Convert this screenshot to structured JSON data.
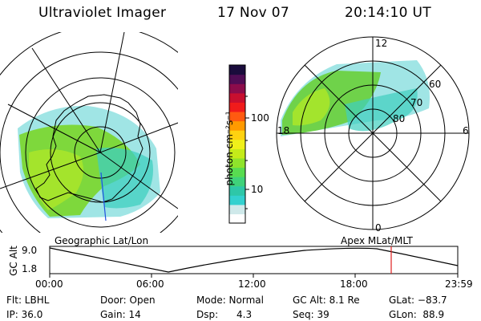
{
  "header": {
    "instrument": "Ultraviolet Imager",
    "date": "17 Nov 07",
    "time": "20:14:10 UT"
  },
  "colorbar": {
    "unit_label": "photon cm⁻²s⁻¹",
    "tick_labels": [
      "100",
      "10"
    ],
    "colors": [
      "#ffffff",
      "#cfe9ea",
      "#33d1cf",
      "#2ec7a8",
      "#3fd27a",
      "#58dc50",
      "#8fe32b",
      "#c4eb19",
      "#f0f01a",
      "#ffd210",
      "#ff9a00",
      "#ff5a10",
      "#f01b1b",
      "#c80f2f",
      "#8c0c4b",
      "#500d55",
      "#1a0c3c"
    ]
  },
  "left_map": {
    "label": "Geographic Lat/Lon"
  },
  "right_map": {
    "label": "Apex MLat/MLT",
    "lat_labels": [
      "60",
      "70",
      "80"
    ],
    "mlt_labels": [
      "12",
      "18",
      "6",
      "0"
    ]
  },
  "timeline": {
    "axis_title": "GC Alt",
    "y_ticks": [
      "9.0",
      "1.8"
    ],
    "x_ticks": [
      "00:00",
      "06:00",
      "12:00",
      "18:00",
      "23:59"
    ],
    "current_marker_color": "#e02020"
  },
  "info": {
    "flt": "Flt: LBHL",
    "ip": "IP: 36.0",
    "door": "Door: Open",
    "gain": "Gain: 14",
    "mode": "Mode: Normal",
    "dsp": "Dsp:      4.3",
    "gcalt": "GC Alt: 8.1 Re",
    "seq": "Seq: 39",
    "glat": "GLat: −83.7",
    "glon": "GLon:  88.9"
  }
}
